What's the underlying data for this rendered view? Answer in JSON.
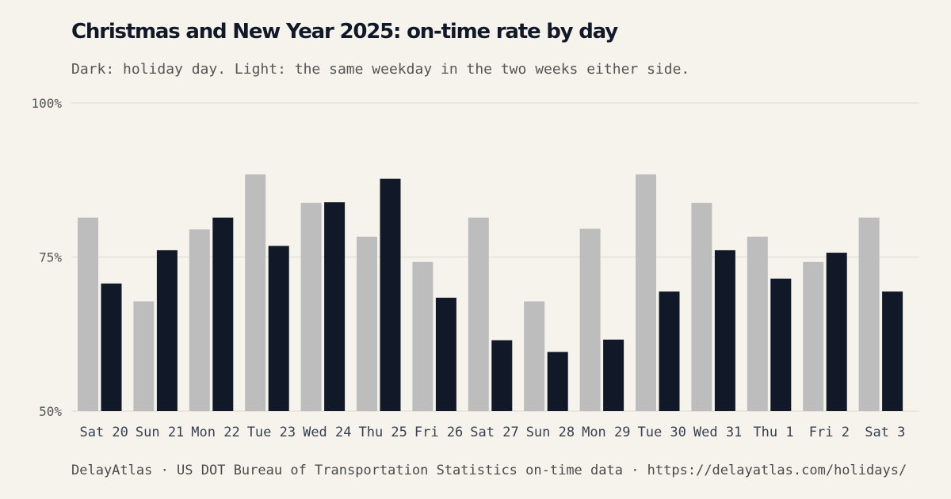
{
  "chart_data": {
    "type": "bar",
    "title": "Christmas and New Year 2025: on-time rate by day",
    "subtitle": "Dark: holiday day. Light: the same weekday in the two weeks either side.",
    "categories": [
      "Sat 20",
      "Sun 21",
      "Mon 22",
      "Tue 23",
      "Wed 24",
      "Thu 25",
      "Fri 26",
      "Sat 27",
      "Sun 28",
      "Mon 29",
      "Tue 30",
      "Wed 31",
      "Thu 1",
      "Fri 2",
      "Sat 3"
    ],
    "series": [
      {
        "key": "baseline",
        "color": "#bdbdbd",
        "values": [
          81.4,
          67.8,
          79.5,
          88.4,
          83.8,
          78.3,
          74.2,
          81.4,
          67.8,
          79.6,
          88.4,
          83.8,
          78.3,
          74.2,
          81.4
        ]
      },
      {
        "key": "holiday",
        "color": "#111827",
        "values": [
          70.7,
          76.1,
          81.4,
          76.8,
          83.9,
          87.7,
          68.4,
          61.5,
          59.6,
          61.6,
          69.4,
          76.1,
          71.5,
          75.7,
          69.4
        ]
      }
    ],
    "ylim": [
      50,
      100
    ],
    "yticks": [
      50,
      75,
      100
    ],
    "ytick_labels": [
      "50%",
      "75%",
      "100%"
    ],
    "grid": true
  },
  "footer": "DelayAtlas · US DOT Bureau of Transportation Statistics on-time data · https://delayatlas.com/holidays/"
}
